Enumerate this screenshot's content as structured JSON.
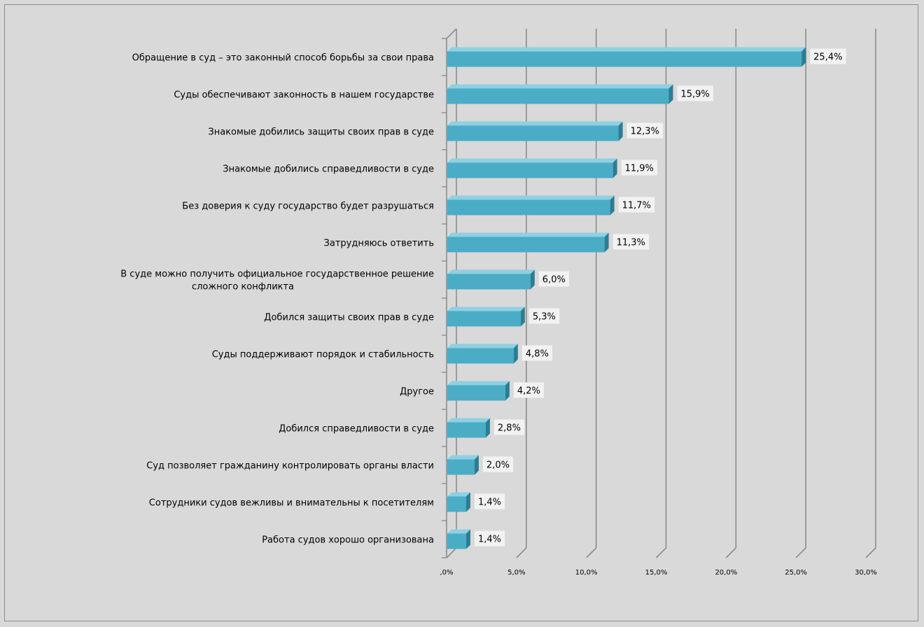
{
  "chart_data": {
    "type": "bar",
    "orientation": "horizontal",
    "style": "3d",
    "categories": [
      "Обращение в суд – это законный способ борьбы за свои права",
      "Суды обеспечивают законность в нашем государстве",
      "Знакомые добились защиты своих прав в суде",
      "Знакомые добились справедливости в суде",
      "Без доверия к суду государство будет разрушаться",
      "Затрудняюсь ответить",
      "В суде можно получить официальное государственное решение сложного конфликта",
      "Добился защиты своих прав в суде",
      "Суды поддерживают  порядок и стабильность",
      "Другое",
      "Добился справедливости в суде",
      "Суд позволяет гражданину контролировать органы власти",
      "Сотрудники судов вежливы и внимательны к посетителям",
      "Работа судов хорошо организована"
    ],
    "category_lines": [
      [
        "Обращение в суд – это законный способ борьбы за свои права"
      ],
      [
        "Суды обеспечивают законность в нашем государстве"
      ],
      [
        "Знакомые добились защиты своих прав в суде"
      ],
      [
        "Знакомые добились справедливости в суде"
      ],
      [
        "Без доверия к суду государство будет разрушаться"
      ],
      [
        "Затрудняюсь ответить"
      ],
      [
        "В суде можно получить официальное государственное решение",
        "сложного конфликта"
      ],
      [
        "Добился защиты своих прав в суде"
      ],
      [
        "Суды поддерживают  порядок и стабильность"
      ],
      [
        "Другое"
      ],
      [
        "Добился справедливости в суде"
      ],
      [
        "Суд позволяет гражданину контролировать органы власти"
      ],
      [
        "Сотрудники судов вежливы и внимательны к посетителям"
      ],
      [
        "Работа судов хорошо организована"
      ]
    ],
    "values": [
      25.4,
      15.9,
      12.3,
      11.9,
      11.7,
      11.3,
      6.0,
      5.3,
      4.8,
      4.2,
      2.8,
      2.0,
      1.4,
      1.4
    ],
    "value_labels": [
      "25,4%",
      "15,9%",
      "12,3%",
      "11,9%",
      "11,7%",
      "11,3%",
      "6,0%",
      "5,3%",
      "4,8%",
      "4,2%",
      "2,8%",
      "2,0%",
      "1,4%",
      "1,4%"
    ],
    "xlim": [
      0,
      30
    ],
    "xticks": [
      0,
      5,
      10,
      15,
      20,
      25,
      30
    ],
    "xtick_labels": [
      ",0%",
      "5,0%",
      "10,0%",
      "15,0%",
      "20,0%",
      "25,0%",
      "30,0%"
    ],
    "grid": true,
    "title": "",
    "xlabel": "",
    "ylabel": "",
    "legend": "none"
  },
  "colors": {
    "background": "#d9d9d9",
    "bar_front": "#4bacc6",
    "bar_top": "#8fd0e2",
    "bar_side": "#2a7e94",
    "gridline": "#8c8c8c",
    "label_box": "#f2f2f2"
  }
}
